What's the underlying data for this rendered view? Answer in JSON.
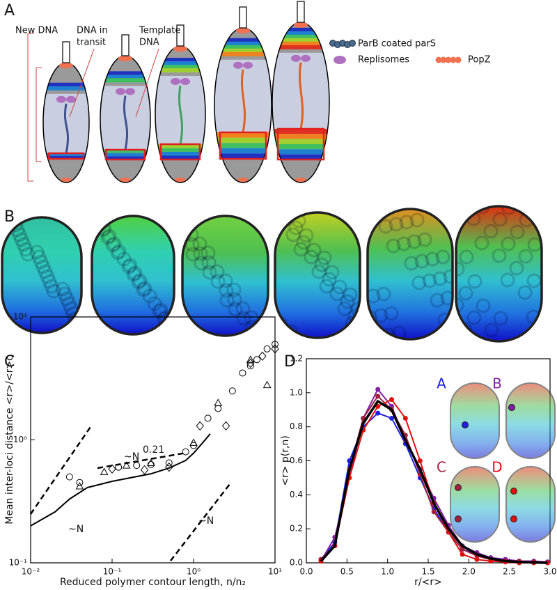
{
  "panel_a": {
    "label": "A",
    "annotations": [
      {
        "lines": [
          "New DNA"
        ]
      },
      {
        "lines": [
          "DNA in",
          "transit"
        ]
      },
      {
        "lines": [
          "Template",
          "DNA"
        ]
      }
    ],
    "legend": [
      "ParB coated parS",
      "Replisomes",
      "PopZ"
    ]
  },
  "panel_b": {
    "label": "B"
  },
  "chart_data": [
    {
      "type": "line",
      "panel_label": "C",
      "x_label": "Reduced polymer contour length, n/n₂",
      "y_label": "Mean inter-loci distance <r>/<r>c",
      "log_x": true,
      "log_y": true,
      "xlim": [
        0.01,
        10
      ],
      "ylim": [
        0.1,
        10
      ],
      "xticks": [
        {
          "value": 0.01,
          "label": "10⁻²"
        },
        {
          "value": 0.1,
          "label": "10⁻¹"
        },
        {
          "value": 1,
          "label": "10⁰"
        },
        {
          "value": 10,
          "label": "10¹"
        }
      ],
      "yticks": [
        {
          "value": 0.1,
          "label": "10⁻¹"
        },
        {
          "value": 1,
          "label": "10⁰"
        },
        {
          "value": 10,
          "label": "10¹"
        }
      ],
      "annotations": [
        {
          "text": "~N"
        },
        {
          "text": "~N",
          "sup": "0.21"
        },
        {
          "text": "~N"
        }
      ],
      "series": [
        {
          "color": "#000000",
          "line": true,
          "x": [
            0.01,
            0.02,
            0.03,
            0.05,
            0.1,
            0.3,
            0.5,
            0.8,
            1,
            1.3,
            1.6
          ],
          "values": [
            0.2,
            0.26,
            0.33,
            0.41,
            0.46,
            0.53,
            0.59,
            0.68,
            0.78,
            0.95,
            1.12
          ]
        },
        {
          "color": "#000000",
          "marker": "circle",
          "x": [
            0.03,
            0.04,
            0.12,
            0.2,
            0.3,
            0.5,
            0.8,
            1,
            1.5,
            2,
            3,
            4,
            5,
            6,
            8,
            10
          ],
          "values": [
            0.5,
            0.45,
            0.6,
            0.62,
            0.63,
            0.65,
            0.8,
            0.9,
            1.5,
            1.8,
            2.5,
            3.5,
            4,
            4.5,
            5.5,
            6
          ]
        },
        {
          "color": "#000000",
          "marker": "triangle",
          "x": [
            0.04,
            0.08,
            0.15,
            0.3,
            1,
            2,
            5,
            8
          ],
          "values": [
            0.42,
            0.55,
            0.62,
            0.65,
            0.95,
            2,
            4.5,
            2.8
          ]
        },
        {
          "color": "#000000",
          "marker": "diamond",
          "x": [
            0.1,
            0.25,
            0.5,
            1.2,
            2.5,
            5,
            7,
            10
          ],
          "values": [
            0.58,
            0.57,
            0.6,
            1.3,
            1.3,
            4.2,
            4.8,
            5.5
          ]
        }
      ]
    },
    {
      "type": "line",
      "panel_label": "D",
      "x_label": "r/<r>",
      "y_label": "<r> p(r,n)",
      "xlim": [
        0,
        3
      ],
      "ylim": [
        0,
        1.2
      ],
      "xticks": [
        {
          "value": 0,
          "label": "0.0"
        },
        {
          "value": 0.5,
          "label": "0.5"
        },
        {
          "value": 1,
          "label": "1.0"
        },
        {
          "value": 1.5,
          "label": "1.5"
        },
        {
          "value": 2,
          "label": "2.0"
        },
        {
          "value": 2.5,
          "label": "2.5"
        },
        {
          "value": 3,
          "label": "3.0"
        }
      ],
      "yticks": [
        {
          "value": 0,
          "label": "0.0"
        },
        {
          "value": 0.2,
          "label": "0.2"
        },
        {
          "value": 0.4,
          "label": "0.4"
        },
        {
          "value": 0.6,
          "label": "0.6"
        },
        {
          "value": 0.8,
          "label": "0.8"
        },
        {
          "value": 1,
          "label": "1.0"
        },
        {
          "value": 1.2,
          "label": "1.2"
        }
      ],
      "x": [
        0.18,
        0.35,
        0.53,
        0.7,
        0.88,
        1.05,
        1.22,
        1.4,
        1.57,
        1.75,
        1.92,
        2.1,
        2.27,
        2.45,
        2.62,
        2.8,
        2.97
      ],
      "series": [
        {
          "name": "A",
          "color": "#2020e0",
          "line": true,
          "marker": "dot",
          "values": [
            0.02,
            0.12,
            0.6,
            0.8,
            0.88,
            0.85,
            0.7,
            0.5,
            0.32,
            0.18,
            0.08,
            0.05,
            0.03,
            0.02,
            0.01,
            0.005,
            0.005
          ]
        },
        {
          "name": "B",
          "color": "#8020a0",
          "line": true,
          "marker": "dot",
          "values": [
            0.01,
            0.15,
            0.5,
            0.85,
            1.02,
            0.92,
            0.72,
            0.55,
            0.38,
            0.22,
            0.1,
            0.06,
            0.03,
            0.02,
            0.01,
            0.01,
            0.005
          ]
        },
        {
          "name": "C",
          "color": "#a02040",
          "line": true,
          "marker": "dot",
          "values": [
            0.02,
            0.1,
            0.55,
            0.85,
            0.98,
            0.9,
            0.75,
            0.52,
            0.3,
            0.18,
            0.08,
            0.04,
            0.02,
            0.01,
            0.01,
            0.005,
            0
          ]
        },
        {
          "name": "D",
          "color": "#e01010",
          "line": true,
          "marker": "dot",
          "values": [
            0.01,
            0.1,
            0.5,
            0.78,
            0.92,
            0.96,
            0.85,
            0.6,
            0.35,
            0.18,
            0.05,
            0.02,
            0.01,
            0.005,
            0,
            0,
            0
          ]
        },
        {
          "color": "#000000",
          "line": true,
          "width": 3.5,
          "values": [
            0.01,
            0.1,
            0.55,
            0.82,
            0.95,
            0.9,
            0.72,
            0.55,
            0.35,
            0.2,
            0.1,
            0.05,
            0.025,
            0.01,
            0.005,
            0.002,
            0
          ]
        }
      ]
    }
  ]
}
